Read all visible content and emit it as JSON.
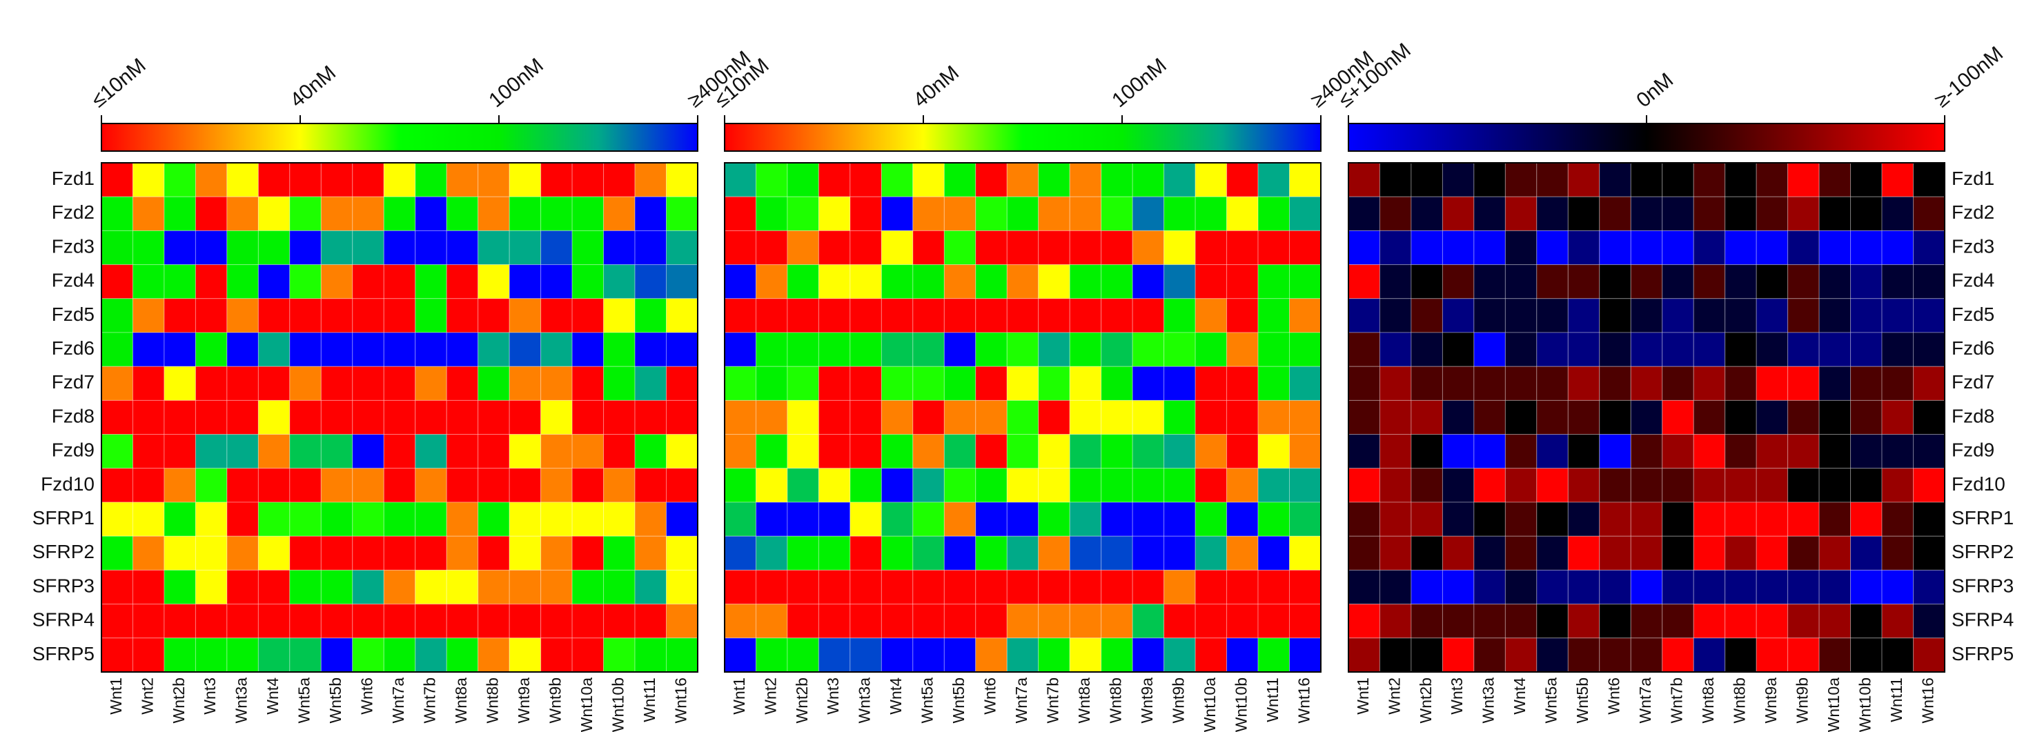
{
  "chart_data": [
    {
      "type": "heatmap",
      "rows": [
        "Fzd1",
        "Fzd2",
        "Fzd3",
        "Fzd4",
        "Fzd5",
        "Fzd6",
        "Fzd7",
        "Fzd8",
        "Fzd9",
        "Fzd10",
        "SFRP1",
        "SFRP2",
        "SFRP3",
        "SFRP4",
        "SFRP5"
      ],
      "categories": [
        "Wnt1",
        "Wnt2",
        "Wnt2b",
        "Wnt3",
        "Wnt3a",
        "Wnt4",
        "Wnt5a",
        "Wnt5b",
        "Wnt6",
        "Wnt7a",
        "Wnt7b",
        "Wnt8a",
        "Wnt8b",
        "Wnt9a",
        "Wnt9b",
        "Wnt10a",
        "Wnt10b",
        "Wnt11",
        "Wnt16"
      ],
      "colorbar_ticks": [
        {
          "value": 10,
          "label": "≤10nM"
        },
        {
          "value": 40,
          "label": "40nM"
        },
        {
          "value": 100,
          "label": "100nM"
        },
        {
          "value": 400,
          "label": "≥400nM"
        }
      ],
      "colors": [
        "#ff0000",
        "#ff8000",
        "#ffff00",
        "#00ff00",
        "#00ee00",
        "#00aa88",
        "#0000ff"
      ],
      "values": [
        [
          10,
          40,
          60,
          20,
          40,
          10,
          10,
          10,
          10,
          40,
          90,
          20,
          20,
          40,
          10,
          10,
          10,
          20,
          40
        ],
        [
          90,
          20,
          90,
          10,
          20,
          40,
          60,
          20,
          20,
          90,
          400,
          90,
          20,
          90,
          90,
          90,
          20,
          400,
          60
        ],
        [
          100,
          90,
          400,
          400,
          100,
          90,
          400,
          200,
          200,
          400,
          400,
          400,
          200,
          200,
          300,
          90,
          400,
          400,
          200
        ],
        [
          10,
          90,
          90,
          10,
          90,
          400,
          60,
          20,
          10,
          10,
          90,
          10,
          40,
          400,
          400,
          90,
          200,
          300,
          250
        ],
        [
          100,
          20,
          10,
          10,
          20,
          10,
          10,
          10,
          10,
          10,
          90,
          10,
          10,
          20,
          10,
          10,
          40,
          90,
          40
        ],
        [
          100,
          400,
          400,
          90,
          400,
          200,
          400,
          400,
          400,
          400,
          400,
          400,
          200,
          300,
          200,
          400,
          90,
          400,
          400
        ],
        [
          20,
          10,
          40,
          10,
          10,
          10,
          20,
          10,
          10,
          10,
          20,
          10,
          100,
          20,
          20,
          10,
          90,
          200,
          10
        ],
        [
          10,
          10,
          10,
          10,
          10,
          40,
          10,
          10,
          10,
          10,
          10,
          10,
          10,
          10,
          40,
          10,
          10,
          10,
          10
        ],
        [
          60,
          10,
          10,
          200,
          200,
          20,
          150,
          150,
          400,
          10,
          200,
          10,
          10,
          40,
          20,
          20,
          10,
          90,
          40
        ],
        [
          10,
          10,
          20,
          60,
          10,
          10,
          10,
          20,
          20,
          10,
          20,
          10,
          10,
          10,
          20,
          10,
          20,
          10,
          10
        ],
        [
          40,
          40,
          90,
          40,
          10,
          60,
          60,
          90,
          60,
          90,
          90,
          20,
          90,
          40,
          40,
          40,
          40,
          20,
          400
        ],
        [
          90,
          20,
          40,
          40,
          20,
          40,
          10,
          10,
          10,
          10,
          10,
          20,
          10,
          40,
          20,
          10,
          90,
          20,
          40
        ],
        [
          10,
          10,
          90,
          40,
          10,
          10,
          90,
          90,
          200,
          20,
          40,
          40,
          20,
          20,
          20,
          90,
          90,
          200,
          40
        ],
        [
          10,
          10,
          10,
          10,
          10,
          10,
          10,
          10,
          10,
          10,
          10,
          10,
          10,
          10,
          10,
          10,
          10,
          10,
          20
        ],
        [
          10,
          10,
          90,
          90,
          90,
          150,
          150,
          400,
          60,
          90,
          200,
          90,
          20,
          40,
          10,
          10,
          60,
          90,
          90
        ]
      ]
    },
    {
      "type": "heatmap",
      "categories": [
        "Wnt1",
        "Wnt2",
        "Wnt2b",
        "Wnt3",
        "Wnt3a",
        "Wnt4",
        "Wnt5a",
        "Wnt5b",
        "Wnt6",
        "Wnt7a",
        "Wnt7b",
        "Wnt8a",
        "Wnt8b",
        "Wnt9a",
        "Wnt9b",
        "Wnt10a",
        "Wnt10b",
        "Wnt11",
        "Wnt16"
      ],
      "colorbar_ticks": [
        {
          "value": 10,
          "label": "≤10nM"
        },
        {
          "value": 40,
          "label": "40nM"
        },
        {
          "value": 100,
          "label": "100nM"
        },
        {
          "value": 400,
          "label": "≥400nM"
        }
      ],
      "colors": [
        "#ff0000",
        "#ff8000",
        "#ffff00",
        "#00ff00",
        "#00ee00",
        "#00aa88",
        "#0000ff"
      ],
      "values": [
        [
          200,
          60,
          90,
          10,
          10,
          60,
          40,
          90,
          10,
          20,
          90,
          20,
          90,
          90,
          200,
          40,
          10,
          200,
          40
        ],
        [
          10,
          90,
          60,
          40,
          10,
          400,
          20,
          20,
          60,
          90,
          20,
          20,
          60,
          250,
          90,
          90,
          40,
          90,
          200
        ],
        [
          10,
          10,
          20,
          10,
          10,
          40,
          10,
          60,
          10,
          10,
          10,
          10,
          10,
          20,
          40,
          10,
          10,
          10,
          10
        ],
        [
          400,
          20,
          90,
          40,
          40,
          90,
          100,
          20,
          90,
          20,
          40,
          90,
          90,
          400,
          250,
          10,
          10,
          90,
          90
        ],
        [
          10,
          10,
          10,
          10,
          10,
          10,
          10,
          10,
          10,
          10,
          10,
          10,
          10,
          10,
          90,
          20,
          10,
          90,
          20
        ],
        [
          400,
          90,
          90,
          90,
          90,
          150,
          150,
          400,
          90,
          60,
          200,
          90,
          150,
          60,
          60,
          90,
          20,
          90,
          90
        ],
        [
          60,
          90,
          60,
          10,
          10,
          60,
          60,
          90,
          10,
          40,
          60,
          40,
          100,
          400,
          400,
          10,
          10,
          90,
          200
        ],
        [
          20,
          20,
          40,
          10,
          10,
          20,
          10,
          20,
          20,
          60,
          10,
          40,
          40,
          40,
          90,
          10,
          10,
          20,
          20
        ],
        [
          20,
          90,
          40,
          10,
          10,
          90,
          20,
          150,
          10,
          60,
          40,
          150,
          90,
          150,
          200,
          20,
          10,
          40,
          20
        ],
        [
          90,
          40,
          150,
          40,
          90,
          400,
          200,
          60,
          90,
          40,
          40,
          90,
          90,
          90,
          90,
          10,
          20,
          200,
          200
        ],
        [
          150,
          400,
          400,
          400,
          40,
          150,
          60,
          20,
          400,
          400,
          90,
          200,
          400,
          400,
          400,
          90,
          400,
          90,
          150
        ],
        [
          300,
          200,
          90,
          90,
          10,
          90,
          150,
          400,
          90,
          200,
          20,
          300,
          300,
          400,
          400,
          200,
          20,
          400,
          40
        ],
        [
          10,
          10,
          10,
          10,
          10,
          10,
          10,
          10,
          10,
          10,
          10,
          10,
          10,
          10,
          20,
          10,
          10,
          10,
          10
        ],
        [
          20,
          20,
          10,
          10,
          10,
          10,
          10,
          10,
          10,
          20,
          20,
          20,
          20,
          150,
          10,
          10,
          10,
          10,
          10
        ],
        [
          400,
          90,
          90,
          300,
          300,
          400,
          400,
          400,
          20,
          200,
          90,
          40,
          90,
          400,
          200,
          10,
          400,
          90,
          400
        ]
      ]
    },
    {
      "type": "heatmap",
      "rows": [
        "Fzd1",
        "Fzd2",
        "Fzd3",
        "Fzd4",
        "Fzd5",
        "Fzd6",
        "Fzd7",
        "Fzd8",
        "Fzd9",
        "Fzd10",
        "SFRP1",
        "SFRP2",
        "SFRP3",
        "SFRP4",
        "SFRP5"
      ],
      "categories": [
        "Wnt1",
        "Wnt2",
        "Wnt2b",
        "Wnt3",
        "Wnt3a",
        "Wnt4",
        "Wnt5a",
        "Wnt5b",
        "Wnt6",
        "Wnt7a",
        "Wnt7b",
        "Wnt8a",
        "Wnt8b",
        "Wnt9a",
        "Wnt9b",
        "Wnt10a",
        "Wnt10b",
        "Wnt11",
        "Wnt16"
      ],
      "colorbar_ticks": [
        {
          "value": 100,
          "label": "≤+100nM"
        },
        {
          "value": 0,
          "label": "0nM"
        },
        {
          "value": -100,
          "label": "≥-100nM"
        }
      ],
      "colors": [
        "#0000ff",
        "#000000",
        "#ff0000"
      ],
      "values": [
        [
          -60,
          0,
          0,
          20,
          0,
          -30,
          -30,
          -60,
          20,
          0,
          0,
          -30,
          0,
          -30,
          -100,
          -30,
          0,
          -100,
          0
        ],
        [
          20,
          -30,
          20,
          -60,
          20,
          -60,
          20,
          0,
          -30,
          20,
          20,
          -30,
          0,
          -30,
          -60,
          0,
          0,
          20,
          -30
        ],
        [
          100,
          50,
          100,
          100,
          100,
          20,
          100,
          50,
          100,
          100,
          100,
          50,
          100,
          100,
          50,
          100,
          100,
          100,
          50
        ],
        [
          -100,
          20,
          0,
          -30,
          20,
          20,
          -30,
          -30,
          0,
          -30,
          20,
          -30,
          20,
          0,
          -30,
          20,
          50,
          20,
          20
        ],
        [
          50,
          20,
          -30,
          50,
          20,
          20,
          20,
          50,
          0,
          20,
          50,
          20,
          20,
          50,
          -30,
          20,
          50,
          50,
          50
        ],
        [
          -30,
          50,
          20,
          0,
          100,
          20,
          50,
          50,
          20,
          50,
          50,
          50,
          0,
          20,
          50,
          50,
          50,
          20,
          20
        ],
        [
          -30,
          -60,
          -30,
          -30,
          -30,
          -30,
          -30,
          -60,
          -30,
          -60,
          -30,
          -60,
          -30,
          -100,
          -100,
          20,
          -30,
          -30,
          -60
        ],
        [
          -30,
          -60,
          -60,
          20,
          -30,
          0,
          -30,
          -30,
          0,
          20,
          -100,
          -30,
          0,
          20,
          -30,
          0,
          -30,
          -60,
          0
        ],
        [
          20,
          -60,
          0,
          100,
          100,
          -30,
          50,
          0,
          100,
          -30,
          -60,
          -100,
          -30,
          -60,
          -60,
          0,
          20,
          20,
          20
        ],
        [
          -100,
          -60,
          -30,
          20,
          -100,
          -60,
          -100,
          -60,
          -30,
          -30,
          -30,
          -60,
          -60,
          -60,
          0,
          0,
          0,
          -60,
          -100
        ],
        [
          -30,
          -60,
          -60,
          20,
          0,
          -30,
          0,
          20,
          -60,
          -60,
          0,
          -100,
          -100,
          -100,
          -100,
          -30,
          -100,
          -30,
          0
        ],
        [
          -30,
          -60,
          0,
          -60,
          20,
          -30,
          20,
          -100,
          -60,
          -60,
          0,
          -100,
          -60,
          -100,
          -30,
          -60,
          50,
          -30,
          0
        ],
        [
          20,
          20,
          100,
          100,
          50,
          20,
          50,
          50,
          50,
          100,
          50,
          50,
          50,
          50,
          50,
          50,
          100,
          100,
          50
        ],
        [
          -100,
          -60,
          -30,
          -30,
          -30,
          -30,
          0,
          -60,
          0,
          -30,
          -30,
          -100,
          -100,
          -100,
          -60,
          -60,
          0,
          -60,
          20
        ],
        [
          -60,
          0,
          0,
          -100,
          -30,
          -60,
          20,
          -30,
          -30,
          -30,
          -100,
          50,
          0,
          -100,
          -100,
          -30,
          0,
          0,
          -60
        ]
      ]
    }
  ]
}
